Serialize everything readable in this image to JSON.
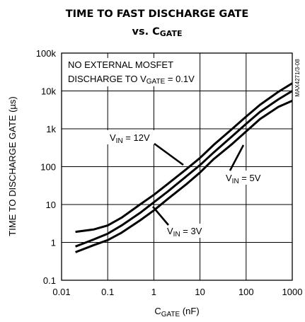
{
  "chart_data": {
    "type": "line",
    "title_line1": "TIME TO FAST DISCHARGE GATE",
    "title_line2_prefix": "vs. C",
    "title_line2_sub": "GATE",
    "xlabel_main": "C",
    "xlabel_sub": "GATE",
    "xlabel_unit": " (nF)",
    "ylabel": "TIME TO DISCHARGE GATE (µs)",
    "x_scale": "log",
    "y_scale": "log",
    "xlim": [
      0.01,
      1000
    ],
    "ylim": [
      0.1,
      100000
    ],
    "x_ticks": [
      0.01,
      0.1,
      1,
      10,
      100,
      1000
    ],
    "x_tick_labels": [
      "0.01",
      "0.1",
      "1",
      "10",
      "100",
      "1000"
    ],
    "y_ticks": [
      0.1,
      1,
      10,
      100,
      1000,
      10000,
      100000
    ],
    "y_tick_labels": [
      "0.1",
      "1",
      "10",
      "100",
      "1k",
      "10k",
      "100k"
    ],
    "grid": true,
    "annotation_line1": "NO EXTERNAL MOSFET",
    "annotation_line2_prefix": "DISCHARGE TO V",
    "annotation_line2_sub": "GATE",
    "annotation_line2_suffix": " = 0.1V",
    "side_code": "MAX4271/3-08",
    "series": [
      {
        "name_main": "V",
        "name_sub": "IN",
        "name_value": " = 12V",
        "x": [
          0.02,
          0.05,
          0.1,
          0.2,
          0.5,
          1,
          2,
          5,
          10,
          20,
          50,
          100,
          200,
          500,
          1000
        ],
        "y": [
          1.9,
          2.2,
          2.8,
          4.5,
          10,
          18,
          35,
          85,
          170,
          380,
          1000,
          2100,
          4300,
          9500,
          16000
        ]
      },
      {
        "name_main": "V",
        "name_sub": "IN",
        "name_value": " = 5V",
        "x": [
          0.02,
          0.05,
          0.1,
          0.2,
          0.5,
          1,
          2,
          5,
          10,
          20,
          50,
          100,
          200,
          500,
          1000
        ],
        "y": [
          0.78,
          1.2,
          1.7,
          2.8,
          6.0,
          11.5,
          22,
          55,
          110,
          240,
          640,
          1350,
          2800,
          6000,
          10000
        ]
      },
      {
        "name_main": "V",
        "name_sub": "IN",
        "name_value": " = 3V",
        "x": [
          0.02,
          0.05,
          0.1,
          0.2,
          0.5,
          1,
          2,
          5,
          10,
          20,
          50,
          100,
          200,
          500,
          1000
        ],
        "y": [
          0.55,
          0.85,
          1.15,
          1.8,
          3.8,
          7.0,
          14,
          34,
          70,
          160,
          400,
          850,
          1800,
          3800,
          5500
        ]
      }
    ]
  }
}
